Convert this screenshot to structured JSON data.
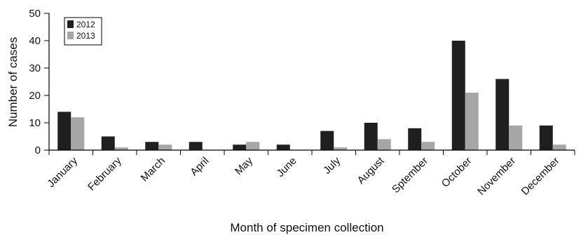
{
  "chart_data": {
    "type": "bar",
    "categories": [
      "January",
      "February",
      "March",
      "April",
      "May",
      "June",
      "July",
      "August",
      "Sptember",
      "October",
      "November",
      "December"
    ],
    "series": [
      {
        "name": "2012",
        "color": "#1f1f1f",
        "values": [
          14,
          5,
          3,
          3,
          2,
          2,
          7,
          10,
          8,
          40,
          26,
          9
        ]
      },
      {
        "name": "2013",
        "color": "#a6a6a6",
        "values": [
          12,
          1,
          2,
          0,
          3,
          0,
          1,
          4,
          3,
          21,
          9,
          2
        ]
      }
    ],
    "title": "",
    "xlabel": "Month of specimen collection",
    "ylabel": "Number of cases",
    "ylim": [
      0,
      50
    ],
    "yticks": [
      0,
      10,
      20,
      30,
      40,
      50
    ],
    "grid": false,
    "legend_position": "top-left"
  }
}
